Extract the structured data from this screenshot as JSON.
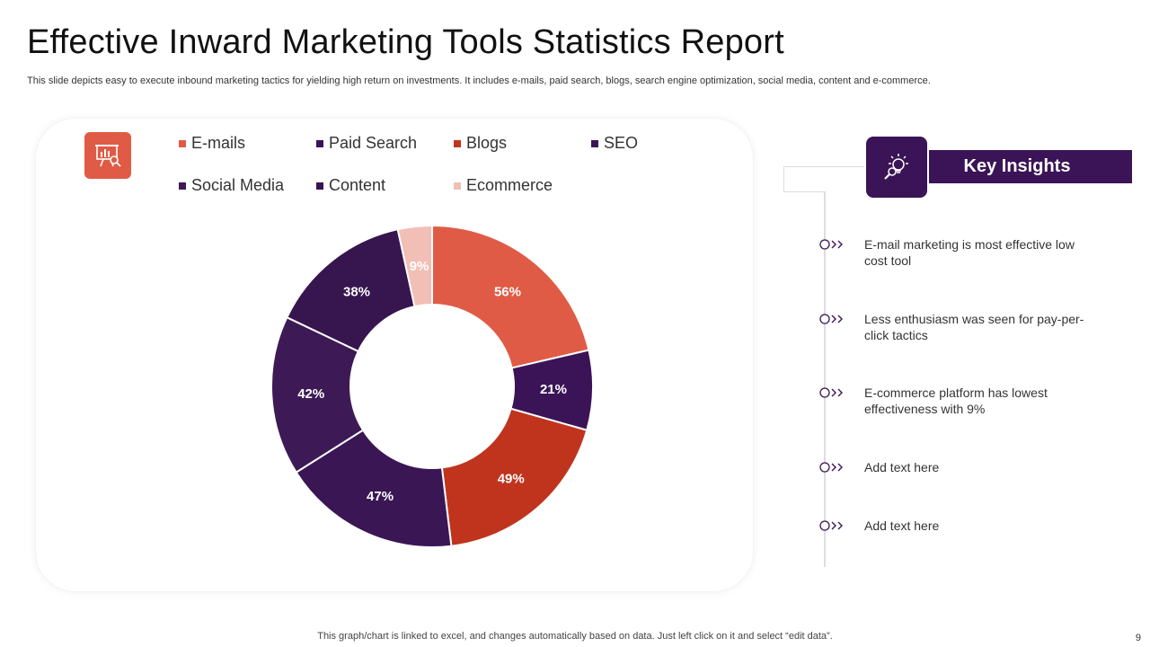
{
  "title": "Effective Inward Marketing Tools Statistics Report",
  "subtitle": "This slide depicts easy to execute  inbound marketing tactics for yielding high return on investments. It includes e-mails, paid search, blogs, search engine optimization, social media, content and e-commerce.",
  "footer": "This graph/chart is linked to excel,  and changes automatically based on data. Just left click on it and select “edit data”.",
  "page_number": "9",
  "icons": {
    "chart": "presentation-chart-icon",
    "insights": "lightbulb-search-icon",
    "marker": "circle-chevrons-icon"
  },
  "colors": {
    "emails": "#E05B45",
    "paid_search": "#3B1457",
    "blogs": "#C0341E",
    "seo": "#3A1655",
    "social_media": "#3D1A56",
    "content": "#37154F",
    "ecommerce": "#F1BFB5",
    "accent": "#3B1457"
  },
  "chart_data": {
    "type": "pie",
    "variant": "donut",
    "categories": [
      "E-mails",
      "Paid Search",
      "Blogs",
      "SEO",
      "Social Media",
      "Content",
      "Ecommerce"
    ],
    "values": [
      56,
      21,
      49,
      47,
      42,
      38,
      9
    ],
    "labels": [
      "56%",
      "21%",
      "49%",
      "47%",
      "42%",
      "38%",
      "9%"
    ],
    "slice_colors": [
      "#E05B45",
      "#3B1457",
      "#C0341E",
      "#3A1655",
      "#3D1A56",
      "#37154F",
      "#F1BFB5"
    ],
    "legend_position": "top"
  },
  "insights": {
    "heading": "Key Insights",
    "items": [
      "E-mail marketing is most effective low cost tool",
      "Less enthusiasm was seen for pay-per-click tactics",
      "E-commerce platform has lowest effectiveness with 9%",
      "Add text here",
      "Add text here"
    ]
  }
}
